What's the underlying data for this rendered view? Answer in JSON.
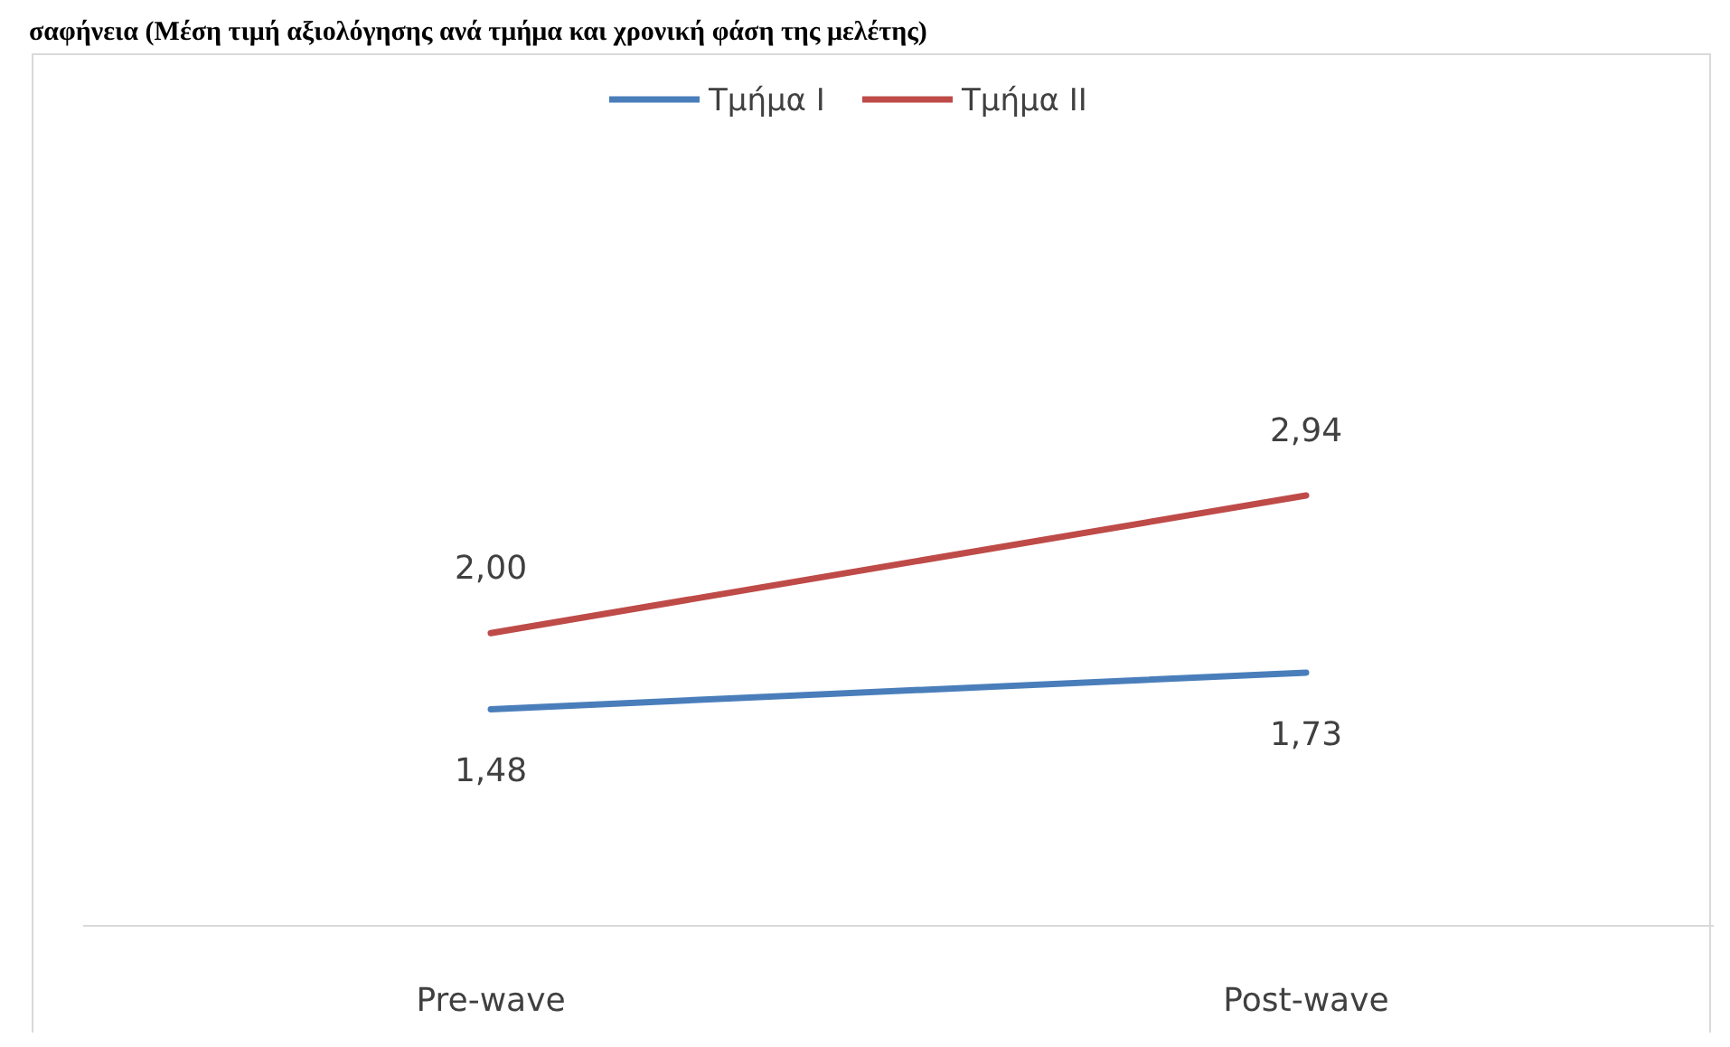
{
  "chart_data": {
    "type": "line",
    "title": "σαφήνεια (Μέση τιμή αξιολόγησης ανά τμήμα και χρονική φάση της μελέτης)",
    "categories": [
      "Pre-wave",
      "Post-wave"
    ],
    "legend": "top",
    "series": [
      {
        "name": "Τμήμα I",
        "color": "#4a7ebb",
        "values": [
          1.48,
          1.73
        ],
        "value_labels": [
          "1,48",
          "1,73"
        ]
      },
      {
        "name": "Τμήμα II",
        "color": "#be4b48",
        "values": [
          2.0,
          2.94
        ],
        "value_labels": [
          "2,00",
          "2,94"
        ]
      }
    ]
  }
}
